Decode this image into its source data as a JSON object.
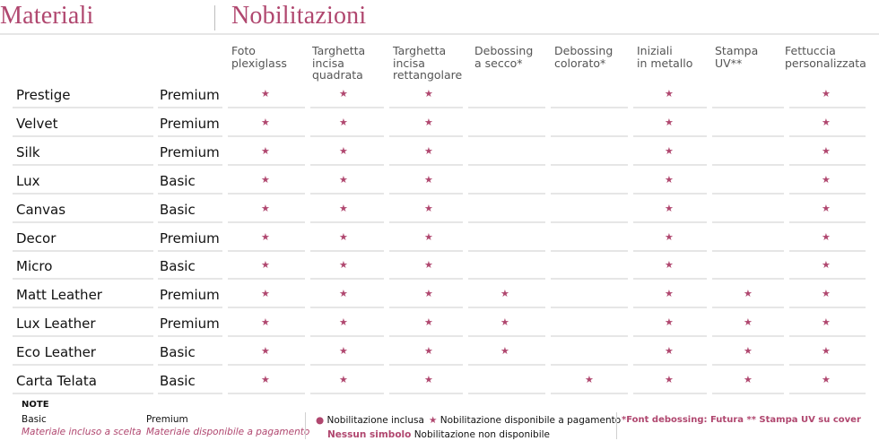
{
  "header": {
    "materials_title": "Materiali",
    "nobilitations_title": "Nobilitazioni"
  },
  "columns": [
    {
      "lines": [
        "Foto",
        "plexiglass"
      ]
    },
    {
      "lines": [
        "Targhetta",
        "incisa",
        "quadrata"
      ]
    },
    {
      "lines": [
        "Targhetta",
        "incisa",
        "rettangolare"
      ]
    },
    {
      "lines": [
        "Debossing",
        "a secco*"
      ]
    },
    {
      "lines": [
        "Debossing",
        "colorato*"
      ]
    },
    {
      "lines": [
        "Iniziali",
        "in metallo"
      ]
    },
    {
      "lines": [
        "Stampa",
        "UV**"
      ]
    },
    {
      "lines": [
        "Fettuccia",
        "personalizzata"
      ]
    }
  ],
  "rows": [
    {
      "name": "Prestige",
      "type": "Premium",
      "marks": [
        1,
        1,
        1,
        0,
        0,
        1,
        0,
        1
      ]
    },
    {
      "name": "Velvet",
      "type": "Premium",
      "marks": [
        1,
        1,
        1,
        0,
        0,
        1,
        0,
        1
      ]
    },
    {
      "name": "Silk",
      "type": "Premium",
      "marks": [
        1,
        1,
        1,
        0,
        0,
        1,
        0,
        1
      ]
    },
    {
      "name": "Lux",
      "type": "Basic",
      "marks": [
        1,
        1,
        1,
        0,
        0,
        1,
        0,
        1
      ]
    },
    {
      "name": "Canvas",
      "type": "Basic",
      "marks": [
        1,
        1,
        1,
        0,
        0,
        1,
        0,
        1
      ]
    },
    {
      "name": "Decor",
      "type": "Premium",
      "marks": [
        1,
        1,
        1,
        0,
        0,
        1,
        0,
        1
      ]
    },
    {
      "name": "Micro",
      "type": "Basic",
      "marks": [
        1,
        1,
        1,
        0,
        0,
        1,
        0,
        1
      ]
    },
    {
      "name": "Matt Leather",
      "type": "Premium",
      "marks": [
        1,
        1,
        1,
        1,
        0,
        1,
        1,
        1
      ]
    },
    {
      "name": "Lux Leather",
      "type": "Premium",
      "marks": [
        1,
        1,
        1,
        1,
        0,
        1,
        1,
        1
      ]
    },
    {
      "name": "Eco Leather",
      "type": "Basic",
      "marks": [
        1,
        1,
        1,
        1,
        0,
        1,
        1,
        1
      ]
    },
    {
      "name": "Carta Telata",
      "type": "Basic",
      "marks": [
        1,
        1,
        1,
        0,
        1,
        1,
        1,
        1
      ]
    }
  ],
  "notes": {
    "title": "NOTE",
    "basic_label": "Basic",
    "basic_desc": "Materiale incluso a scelta",
    "premium_label": "Premium",
    "premium_desc": "Materiale disponibile a pagamento",
    "legend_dot": "Nobilitazione inclusa",
    "legend_star": "Nobilitazione disponibile a pagamento",
    "legend_none_label": "Nessun simbolo",
    "legend_none_desc": "Nobilitazione non disponibile",
    "footnote": "*Font debossing: Futura  ** Stampa UV su cover"
  },
  "colors": {
    "accent": "#b0476f",
    "rule": "#e6e6e6"
  }
}
